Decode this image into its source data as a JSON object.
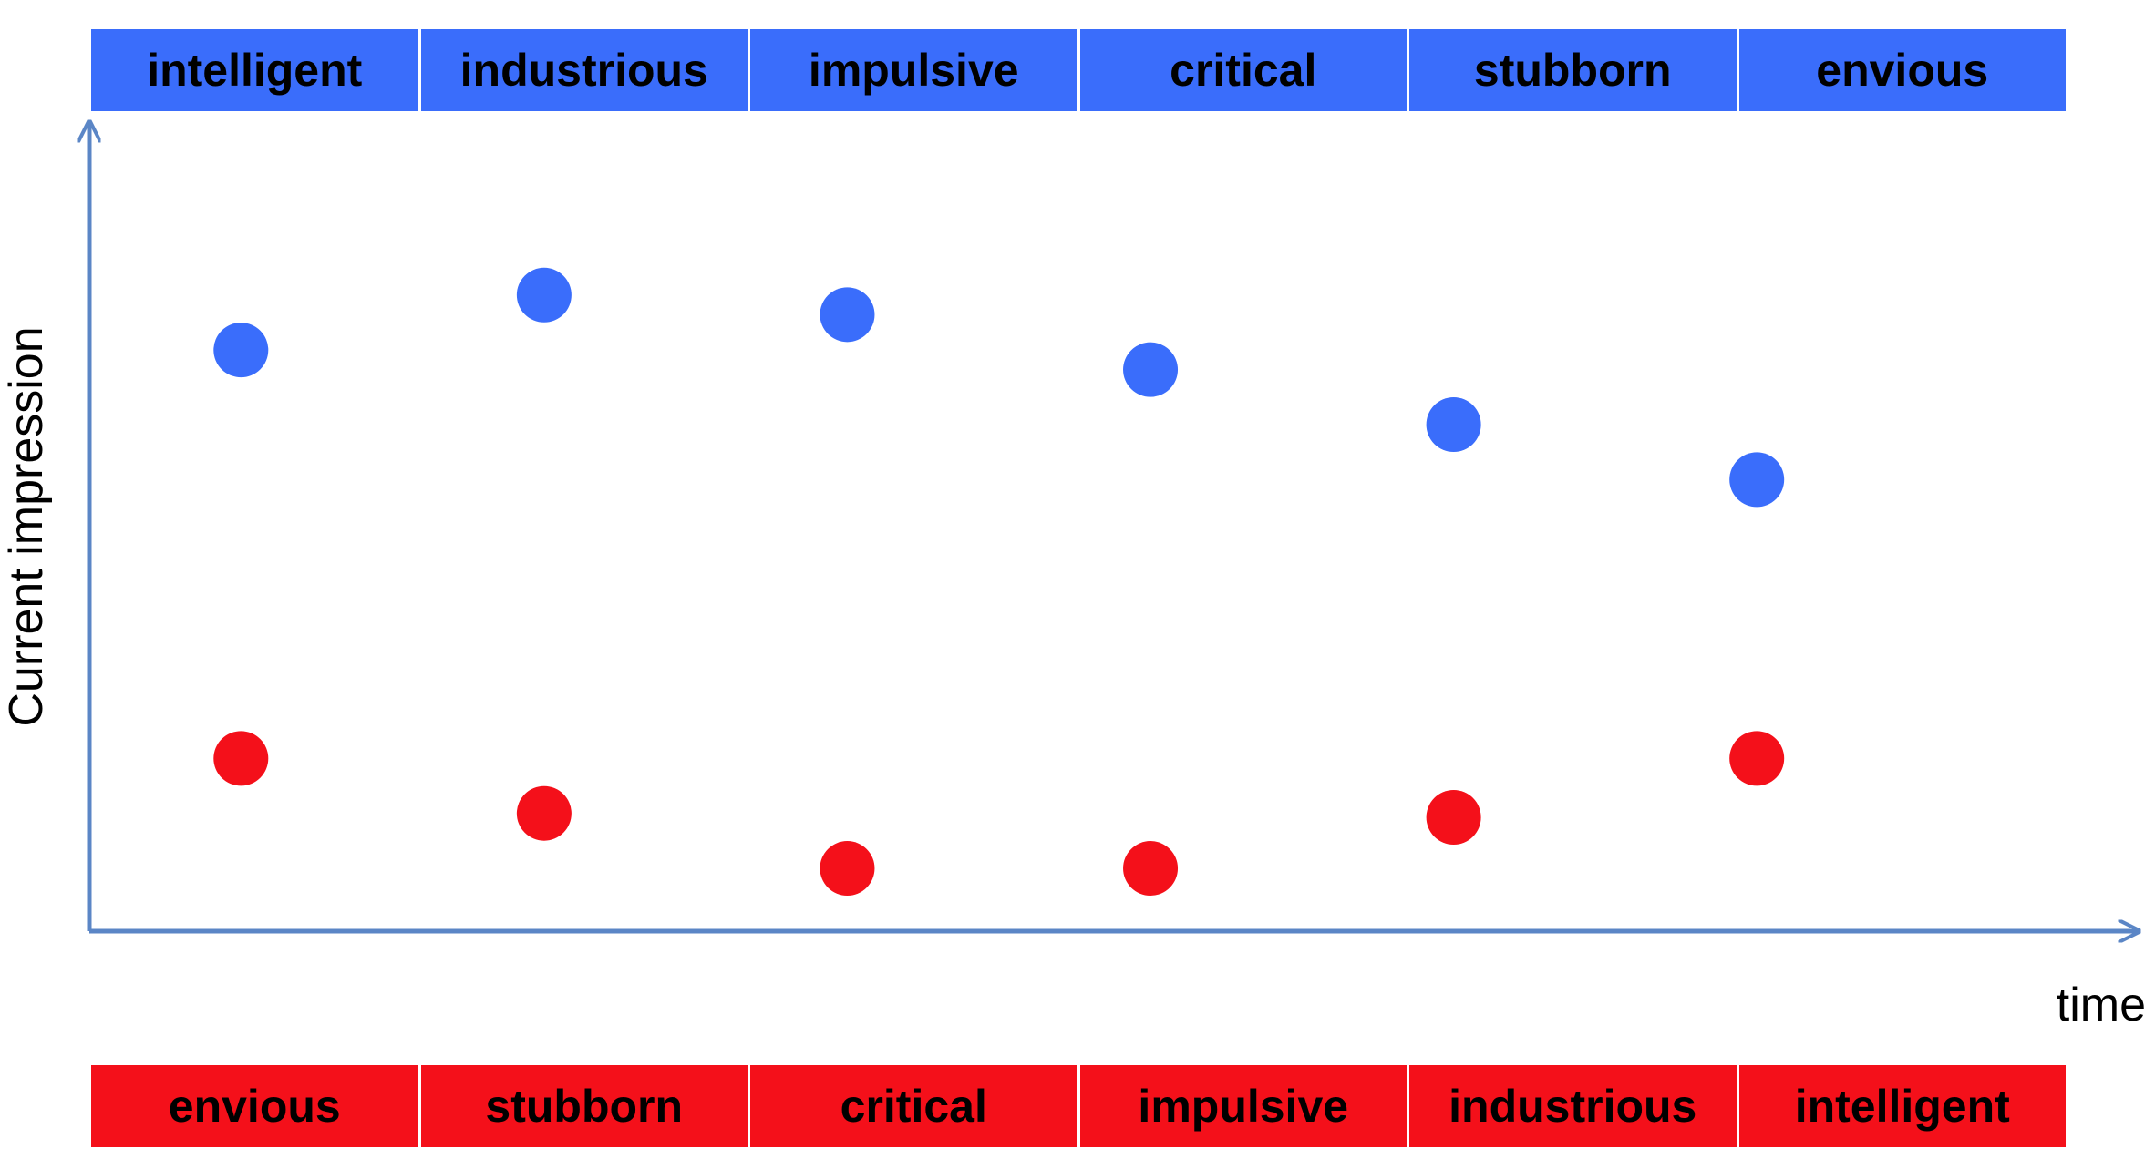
{
  "chart_data": {
    "type": "scatter",
    "title": "",
    "xlabel": "time",
    "ylabel": "Current impression",
    "xlim": [
      0.5,
      6.7
    ],
    "ylim": [
      0,
      100
    ],
    "grid": false,
    "legend": "none",
    "series": [
      {
        "color": "#3A6DFB",
        "words": [
          "intelligent",
          "industrious",
          "impulsive",
          "critical",
          "stubborn",
          "envious"
        ],
        "x": [
          1,
          2,
          3,
          4,
          5,
          6
        ],
        "y": [
          74,
          81,
          78.5,
          71.5,
          64.5,
          57.5
        ]
      },
      {
        "color": "#F4101A",
        "words": [
          "envious",
          "stubborn",
          "critical",
          "impulsive",
          "industrious",
          "intelligent"
        ],
        "x": [
          1,
          2,
          3,
          4,
          5,
          6
        ],
        "y": [
          22,
          15,
          8,
          8,
          14.5,
          22
        ]
      }
    ],
    "axis_color": "#5B86C6"
  }
}
